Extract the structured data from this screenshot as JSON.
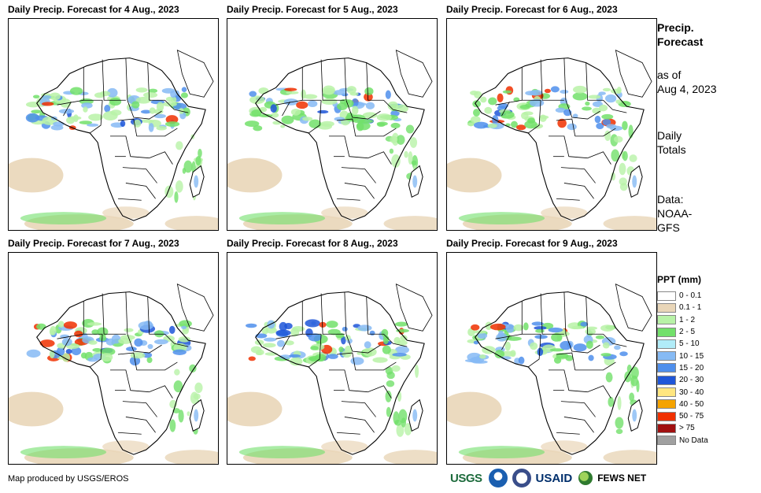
{
  "panels": [
    {
      "title": "Daily Precip. Forecast for 4 Aug., 2023"
    },
    {
      "title": "Daily Precip. Forecast for 5 Aug., 2023"
    },
    {
      "title": "Daily Precip. Forecast for 6 Aug., 2023"
    },
    {
      "title": "Daily Precip. Forecast for 7 Aug., 2023"
    },
    {
      "title": "Daily Precip. Forecast for 8 Aug., 2023"
    },
    {
      "title": "Daily Precip. Forecast for 9 Aug., 2023"
    }
  ],
  "side": {
    "title_line1": "Precip.",
    "title_line2": "Forecast",
    "asof_line1": "as of",
    "asof_line2": "Aug 4, 2023",
    "totals_line1": "Daily",
    "totals_line2": "Totals",
    "data_line1": "Data:",
    "data_line2": "NOAA-",
    "data_line3": "GFS"
  },
  "legend": {
    "title": "PPT (mm)",
    "items": [
      {
        "label": "0 - 0.1",
        "color": "#ffffff"
      },
      {
        "label": "0.1 - 1",
        "color": "#e9d6b8"
      },
      {
        "label": "1 - 2",
        "color": "#b8f2a7"
      },
      {
        "label": "2 - 5",
        "color": "#72e06a"
      },
      {
        "label": "5 - 10",
        "color": "#b1ecf8"
      },
      {
        "label": "10 - 15",
        "color": "#86baf4"
      },
      {
        "label": "15 - 20",
        "color": "#4f8fec"
      },
      {
        "label": "20 - 30",
        "color": "#1f56d8"
      },
      {
        "label": "30 - 40",
        "color": "#ffe680"
      },
      {
        "label": "40 - 50",
        "color": "#f5a300"
      },
      {
        "label": "50 - 75",
        "color": "#f03000"
      },
      {
        "label": "> 75",
        "color": "#a01010"
      },
      {
        "label": "No Data",
        "color": "#a0a0a0"
      }
    ]
  },
  "footer": {
    "credit": "Map produced by USGS/EROS"
  },
  "logos": {
    "usgs": "USGS",
    "usaid": "USAID",
    "fews": "FEWS NET"
  }
}
